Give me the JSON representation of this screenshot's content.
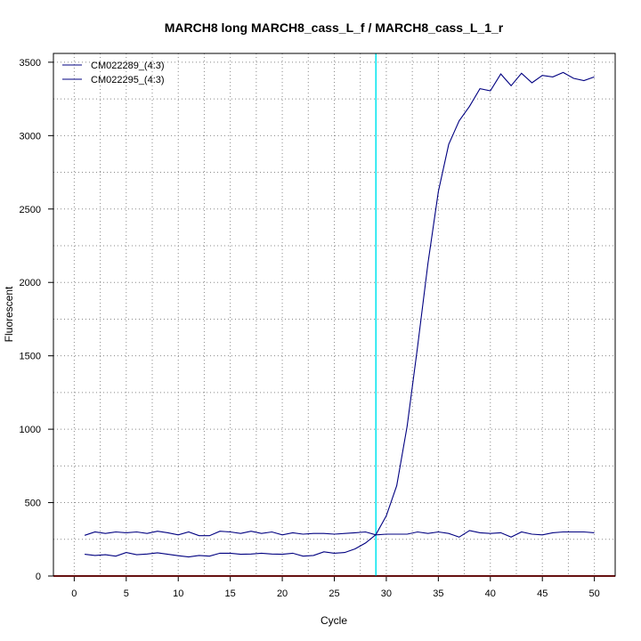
{
  "chart_data": {
    "type": "line",
    "title": "MARCH8 long MARCH8_cass_L_f / MARCH8_cass_L_1_r",
    "xlabel": "Cycle",
    "ylabel": "Fluorescent",
    "xlim": [
      -2,
      52
    ],
    "ylim": [
      0,
      3560
    ],
    "x_ticks": [
      0,
      5,
      10,
      15,
      20,
      25,
      30,
      35,
      40,
      45,
      50
    ],
    "y_ticks": [
      0,
      500,
      1000,
      1500,
      2000,
      2500,
      3000,
      3500
    ],
    "grid": true,
    "threshold_cycle": 29,
    "threshold_color": "#00e5ee",
    "baseline_color": "#cc2222",
    "legend_position": "top-left",
    "x": [
      1,
      2,
      3,
      4,
      5,
      6,
      7,
      8,
      9,
      10,
      11,
      12,
      13,
      14,
      15,
      16,
      17,
      18,
      19,
      20,
      21,
      22,
      23,
      24,
      25,
      26,
      27,
      28,
      29,
      30,
      31,
      32,
      33,
      34,
      35,
      36,
      37,
      38,
      39,
      40,
      41,
      42,
      43,
      44,
      45,
      46,
      47,
      48,
      49,
      50
    ],
    "series": [
      {
        "name": "CM022289_(4:3)",
        "color": "#000080",
        "values": [
          277,
          300,
          290,
          300,
          295,
          300,
          290,
          305,
          295,
          280,
          300,
          275,
          275,
          305,
          300,
          290,
          305,
          290,
          300,
          280,
          295,
          285,
          290,
          290,
          285,
          290,
          295,
          300,
          280,
          285,
          285,
          285,
          300,
          290,
          300,
          290,
          265,
          310,
          295,
          290,
          295,
          265,
          300,
          285,
          280,
          295,
          300,
          300,
          300,
          295
        ]
      },
      {
        "name": "CM022295_(4:3)",
        "color": "#000080",
        "values": [
          148,
          140,
          145,
          135,
          160,
          145,
          150,
          158,
          148,
          138,
          130,
          140,
          135,
          155,
          155,
          148,
          150,
          155,
          150,
          148,
          155,
          135,
          140,
          165,
          155,
          160,
          185,
          225,
          282,
          410,
          615,
          1020,
          1560,
          2130,
          2620,
          2940,
          3100,
          3200,
          3320,
          3305,
          3420,
          3340,
          3425,
          3360,
          3410,
          3400,
          3430,
          3390,
          3375,
          3400
        ]
      }
    ]
  }
}
